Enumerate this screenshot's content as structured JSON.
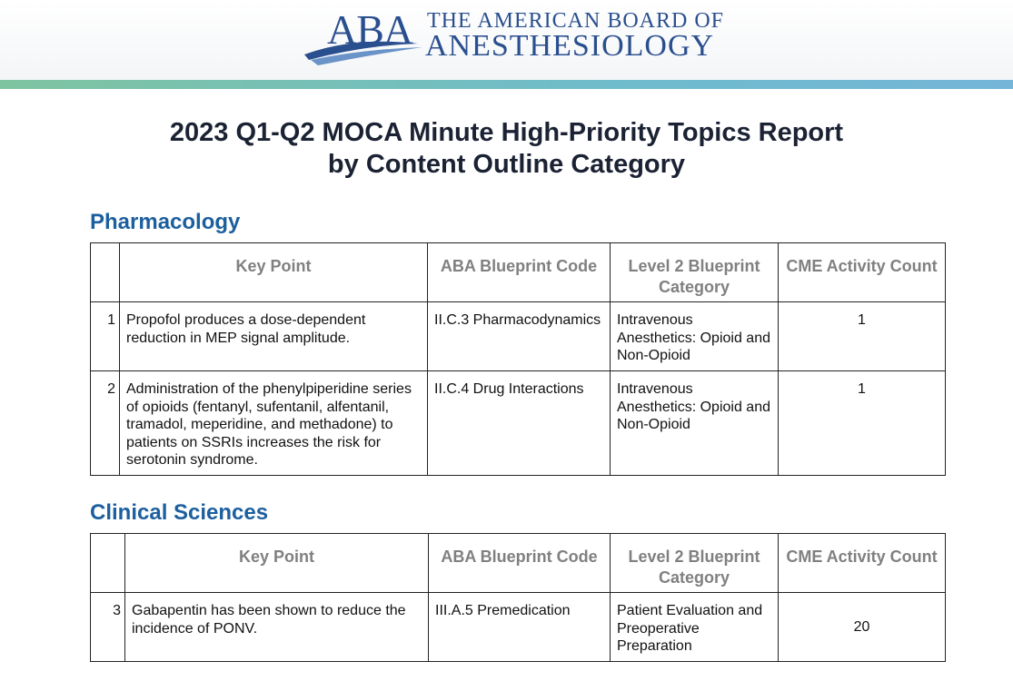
{
  "header": {
    "logo_mark": "ABA",
    "org_line1": "THE AMERICAN BOARD OF",
    "org_line2": "ANESTHESIOLOGY"
  },
  "title": {
    "line1": "2023 Q1-Q2 MOCA Minute High-Priority Topics Report",
    "line2": "by Content Outline Category"
  },
  "sections": [
    {
      "heading": "Pharmacology",
      "table": {
        "columns": [
          "Key Point",
          "ABA Blueprint Code",
          "Level 2 Blueprint Category",
          "CME Activity Count"
        ],
        "rows": [
          [
            1,
            "Propofol produces a dose-dependent reduction in MEP signal amplitude.",
            "II.C.3 Pharmacodynamics",
            "Intravenous Anesthetics: Opioid and Non-Opioid",
            1
          ],
          [
            2,
            "Administration of the phenylpiperidine series of opioids (fentanyl, sufentanil, alfentanil, tramadol, meperidine, and methadone) to patients on SSRIs increases the risk for serotonin syndrome.",
            "II.C.4 Drug Interactions",
            "Intravenous Anesthetics: Opioid and Non-Opioid",
            1
          ]
        ]
      }
    },
    {
      "heading": "Clinical Sciences",
      "table": {
        "columns": [
          "Key Point",
          "ABA Blueprint Code",
          "Level 2 Blueprint Category",
          "CME Activity Count"
        ],
        "rows": [
          [
            3,
            "Gabapentin has been shown to reduce the incidence of PONV.",
            "III.A.5 Premedication",
            "Patient Evaluation and Preoperative Preparation",
            20
          ]
        ]
      }
    }
  ]
}
